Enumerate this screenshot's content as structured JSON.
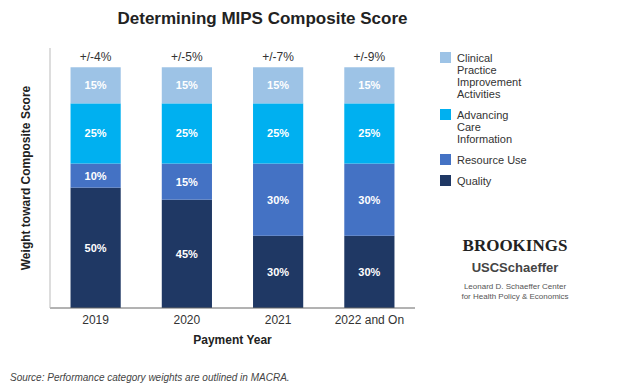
{
  "chart_data": {
    "type": "bar",
    "stacked": true,
    "title": "Determining MIPS Composite Score",
    "xlabel": "Payment Year",
    "ylabel": "Weight toward Composite Score",
    "categories": [
      "2019",
      "2020",
      "2021",
      "2022 and On"
    ],
    "series": [
      {
        "name": "Quality",
        "color": "#1F3864",
        "values": [
          50,
          45,
          30,
          30
        ],
        "value_labels": [
          "50%",
          "45%",
          "30%",
          "30%"
        ]
      },
      {
        "name": "Resource Use",
        "color": "#4472C4",
        "values": [
          10,
          15,
          30,
          30
        ],
        "value_labels": [
          "10%",
          "15%",
          "30%",
          "30%"
        ]
      },
      {
        "name": "Advancing\nCare\nInformation",
        "color": "#00B0F0",
        "values": [
          25,
          25,
          25,
          25
        ],
        "value_labels": [
          "25%",
          "25%",
          "25%",
          "25%"
        ]
      },
      {
        "name": "Clinical\nPractice\nImprovement\nActivities",
        "color": "#9DC3E6",
        "values": [
          15,
          15,
          15,
          15
        ],
        "value_labels": [
          "15%",
          "15%",
          "15%",
          "15%"
        ]
      }
    ],
    "annotations": [
      "+/-4%",
      "+/-5%",
      "+/-7%",
      "+/-9%"
    ],
    "credits": [
      "BROOKINGS",
      "USCSchaeffer",
      "Leonard D. Schaeffer Center\nfor Health Policy & Economics"
    ],
    "source": "Source: Performance category weights are outlined in MACRA.",
    "ylim": [
      0,
      108
    ],
    "data_labels": true,
    "tick_labels": "x",
    "grid": false,
    "legend": "right"
  }
}
